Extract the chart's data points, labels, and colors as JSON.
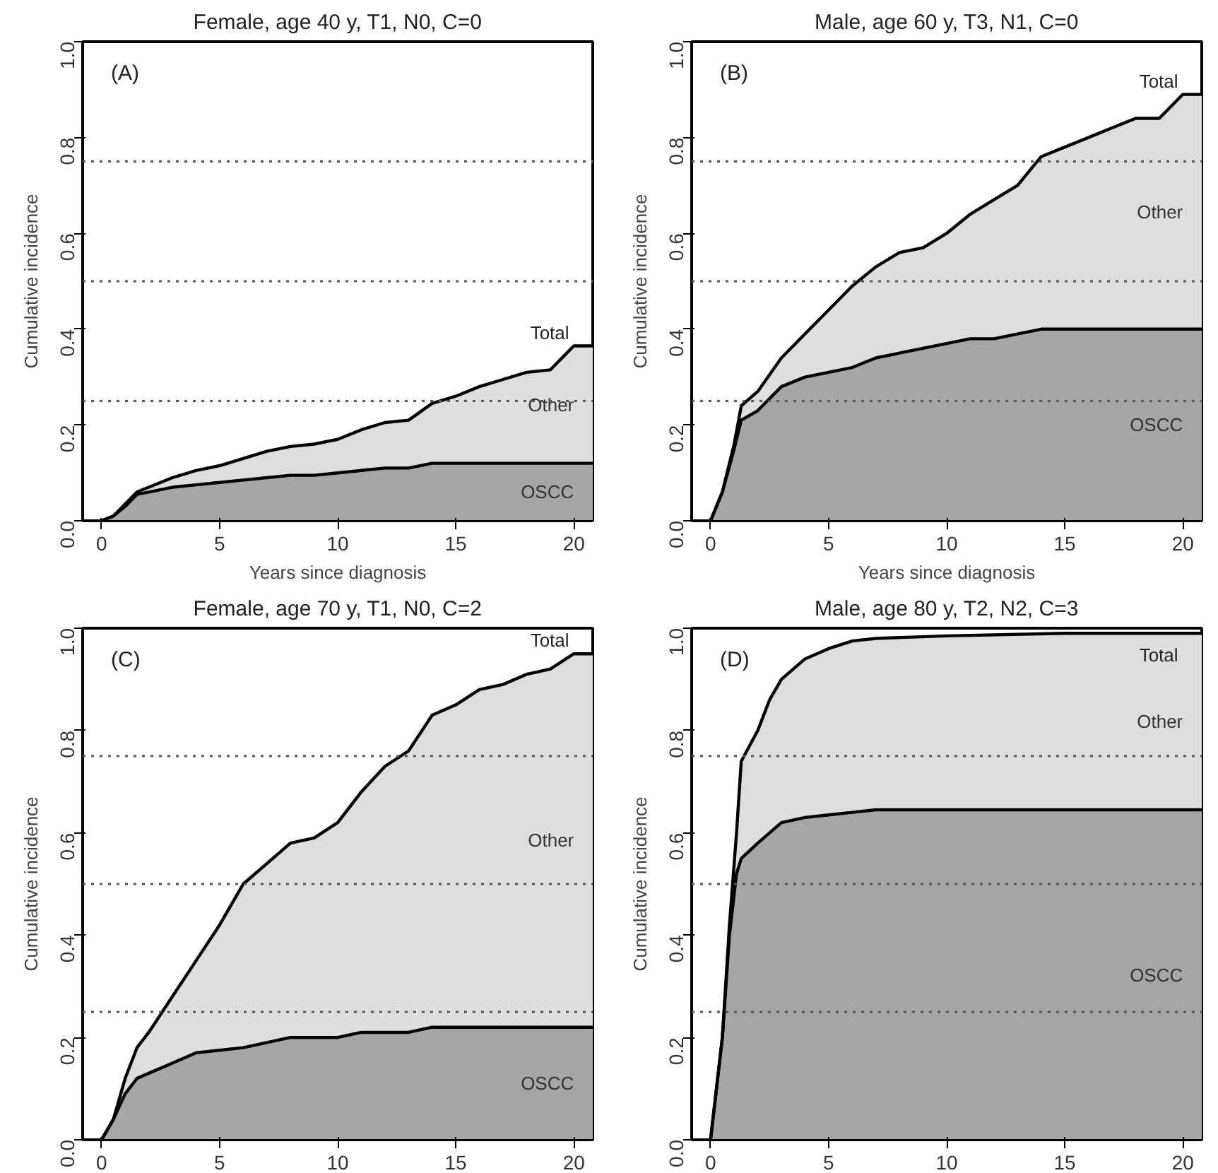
{
  "chart_data": [
    {
      "type": "area",
      "title": "Female, age 40 y, T1, N0, C=0",
      "xlabel": "Years since diagnosis",
      "ylabel": "Cumulative incidence",
      "stacked": true,
      "grid": false,
      "x": [
        0,
        0.5,
        1,
        1.5,
        2,
        3,
        4,
        5,
        6,
        7,
        8,
        9,
        10,
        11,
        12,
        13,
        14,
        15,
        16,
        17,
        18,
        19,
        20,
        20.8
      ],
      "series": [
        {
          "name": "OSCC",
          "color": "#a6a6a6",
          "values": [
            0,
            0.01,
            0.03,
            0.055,
            0.06,
            0.07,
            0.075,
            0.08,
            0.085,
            0.09,
            0.095,
            0.095,
            0.1,
            0.105,
            0.11,
            0.11,
            0.12,
            0.12,
            0.12,
            0.12,
            0.12,
            0.12,
            0.12,
            0.12
          ]
        },
        {
          "name": "Other",
          "color": "#dedede",
          "values": [
            0,
            0,
            0.005,
            0.005,
            0.01,
            0.02,
            0.03,
            0.035,
            0.045,
            0.055,
            0.06,
            0.065,
            0.07,
            0.085,
            0.095,
            0.1,
            0.125,
            0.14,
            0.16,
            0.175,
            0.19,
            0.195,
            0.245,
            0.245
          ]
        }
      ],
      "annotations": [
        "(A)",
        "Total"
      ],
      "ref_lines": [
        {
          "axis": "y",
          "value": 0.25,
          "color": "#555555",
          "line_style": "dotted"
        },
        {
          "axis": "y",
          "value": 0.5,
          "color": "#555555",
          "line_style": "dotted"
        },
        {
          "axis": "y",
          "value": 0.75,
          "color": "#555555",
          "line_style": "dotted"
        }
      ],
      "xlim": [
        -0.8,
        20.8
      ],
      "ylim": [
        0,
        1
      ],
      "xticks": [
        0,
        5,
        10,
        15,
        20
      ],
      "yticks": [
        {
          "value": 0,
          "label": "0.0"
        },
        {
          "value": 0.2,
          "label": "0.2"
        },
        {
          "value": 0.4,
          "label": "0.4"
        },
        {
          "value": 0.6,
          "label": "0.6"
        },
        {
          "value": 0.8,
          "label": "0.8"
        },
        {
          "value": 1,
          "label": "1.0"
        }
      ]
    },
    {
      "type": "area",
      "title": "Male, age 60 y, T3, N1, C=0",
      "xlabel": "Years since diagnosis",
      "ylabel": "Cumulative incidence",
      "stacked": true,
      "grid": false,
      "x": [
        0,
        0.5,
        1,
        1.3,
        2,
        3,
        4,
        5,
        6,
        7,
        8,
        9,
        10,
        11,
        12,
        13,
        14,
        15,
        16,
        17,
        18,
        19,
        20,
        20.8
      ],
      "series": [
        {
          "name": "OSCC",
          "color": "#a6a6a6",
          "values": [
            0,
            0.06,
            0.15,
            0.21,
            0.23,
            0.28,
            0.3,
            0.31,
            0.32,
            0.34,
            0.35,
            0.36,
            0.37,
            0.38,
            0.38,
            0.39,
            0.4,
            0.4,
            0.4,
            0.4,
            0.4,
            0.4,
            0.4,
            0.4
          ]
        },
        {
          "name": "Other",
          "color": "#dedede",
          "values": [
            0,
            0,
            0.01,
            0.03,
            0.04,
            0.06,
            0.09,
            0.13,
            0.17,
            0.19,
            0.21,
            0.21,
            0.23,
            0.26,
            0.29,
            0.31,
            0.36,
            0.38,
            0.4,
            0.42,
            0.44,
            0.44,
            0.49,
            0.49
          ]
        }
      ],
      "annotations": [
        "(B)",
        "Total"
      ],
      "ref_lines": [
        {
          "axis": "y",
          "value": 0.25,
          "color": "#555555",
          "line_style": "dotted"
        },
        {
          "axis": "y",
          "value": 0.5,
          "color": "#555555",
          "line_style": "dotted"
        },
        {
          "axis": "y",
          "value": 0.75,
          "color": "#555555",
          "line_style": "dotted"
        }
      ],
      "xlim": [
        -0.8,
        20.8
      ],
      "ylim": [
        0,
        1
      ],
      "xticks": [
        0,
        5,
        10,
        15,
        20
      ],
      "yticks": [
        {
          "value": 0,
          "label": "0.0"
        },
        {
          "value": 0.2,
          "label": "0.2"
        },
        {
          "value": 0.4,
          "label": "0.4"
        },
        {
          "value": 0.6,
          "label": "0.6"
        },
        {
          "value": 0.8,
          "label": "0.8"
        },
        {
          "value": 1,
          "label": "1.0"
        }
      ]
    },
    {
      "type": "area",
      "title": "Female, age 70 y, T1, N0, C=2",
      "ylabel": "Cumulative incidence",
      "stacked": true,
      "grid": false,
      "x": [
        0,
        0.5,
        1,
        1.5,
        2,
        3,
        4,
        5,
        6,
        7,
        8,
        9,
        10,
        11,
        12,
        13,
        14,
        15,
        16,
        17,
        18,
        19,
        20,
        20.8
      ],
      "series": [
        {
          "name": "OSCC",
          "color": "#a6a6a6",
          "values": [
            0,
            0.04,
            0.09,
            0.12,
            0.13,
            0.15,
            0.17,
            0.175,
            0.18,
            0.19,
            0.2,
            0.2,
            0.2,
            0.21,
            0.21,
            0.21,
            0.22,
            0.22,
            0.22,
            0.22,
            0.22,
            0.22,
            0.22,
            0.22
          ]
        },
        {
          "name": "Other",
          "color": "#dedede",
          "values": [
            0,
            0,
            0.03,
            0.06,
            0.08,
            0.13,
            0.18,
            0.245,
            0.32,
            0.35,
            0.38,
            0.39,
            0.42,
            0.47,
            0.52,
            0.55,
            0.61,
            0.63,
            0.66,
            0.67,
            0.69,
            0.7,
            0.73,
            0.73
          ]
        }
      ],
      "annotations": [
        "(C)",
        "Total"
      ],
      "ref_lines": [
        {
          "axis": "y",
          "value": 0.25,
          "color": "#555555",
          "line_style": "dotted"
        },
        {
          "axis": "y",
          "value": 0.5,
          "color": "#555555",
          "line_style": "dotted"
        },
        {
          "axis": "y",
          "value": 0.75,
          "color": "#555555",
          "line_style": "dotted"
        }
      ],
      "xlim": [
        -0.8,
        20.8
      ],
      "ylim": [
        0,
        1
      ],
      "xticks": [
        0,
        5,
        10,
        15,
        20
      ],
      "yticks": [
        {
          "value": 0,
          "label": "0.0"
        },
        {
          "value": 0.2,
          "label": "0.2"
        },
        {
          "value": 0.4,
          "label": "0.4"
        },
        {
          "value": 0.6,
          "label": "0.6"
        },
        {
          "value": 0.8,
          "label": "0.8"
        },
        {
          "value": 1,
          "label": "1.0"
        }
      ]
    },
    {
      "type": "area",
      "title": "Male, age 80 y, T2, N2, C=3",
      "ylabel": "Cumulative incidence",
      "stacked": true,
      "grid": false,
      "x": [
        0,
        0.5,
        0.8,
        1.1,
        1.3,
        2,
        2.5,
        3,
        4,
        5,
        6,
        7,
        10,
        15,
        20,
        20.8
      ],
      "series": [
        {
          "name": "OSCC",
          "color": "#a6a6a6",
          "values": [
            0,
            0.2,
            0.4,
            0.52,
            0.55,
            0.58,
            0.6,
            0.62,
            0.63,
            0.635,
            0.64,
            0.645,
            0.645,
            0.645,
            0.645,
            0.645
          ]
        },
        {
          "name": "Other",
          "color": "#dedede",
          "values": [
            0,
            0,
            0.02,
            0.08,
            0.19,
            0.22,
            0.26,
            0.28,
            0.31,
            0.325,
            0.335,
            0.335,
            0.34,
            0.345,
            0.345,
            0.345
          ]
        }
      ],
      "annotations": [
        "(D)",
        "Total"
      ],
      "ref_lines": [
        {
          "axis": "y",
          "value": 0.25,
          "color": "#555555",
          "line_style": "dotted"
        },
        {
          "axis": "y",
          "value": 0.5,
          "color": "#555555",
          "line_style": "dotted"
        },
        {
          "axis": "y",
          "value": 0.75,
          "color": "#555555",
          "line_style": "dotted"
        }
      ],
      "xlim": [
        -0.8,
        20.8
      ],
      "ylim": [
        0,
        1
      ],
      "xticks": [
        0,
        5,
        10,
        15,
        20
      ],
      "yticks": [
        {
          "value": 0,
          "label": "0.0"
        },
        {
          "value": 0.2,
          "label": "0.2"
        },
        {
          "value": 0.4,
          "label": "0.4"
        },
        {
          "value": 0.6,
          "label": "0.6"
        },
        {
          "value": 0.8,
          "label": "0.8"
        },
        {
          "value": 1,
          "label": "1.0"
        }
      ]
    }
  ]
}
